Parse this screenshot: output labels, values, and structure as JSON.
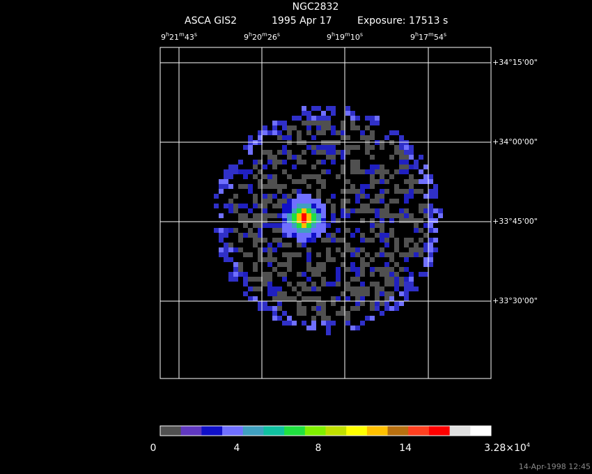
{
  "header": {
    "title": "NGC2832",
    "instrument": "ASCA GIS2",
    "date": "1995 Apr 17",
    "exposure": "Exposure: 17513 s"
  },
  "ra_labels": [
    [
      "9",
      "h",
      "21",
      "m",
      "43",
      "s"
    ],
    [
      "9",
      "h",
      "20",
      "m",
      "26",
      "s"
    ],
    [
      "9",
      "h",
      "19",
      "m",
      "10",
      "s"
    ],
    [
      "9",
      "h",
      "17",
      "m",
      "54",
      "s"
    ]
  ],
  "dec_labels": [
    "+34°15'00\"",
    "+34°00'00\"",
    "+33°45'00\"",
    "+33°30'00\""
  ],
  "colorbar": {
    "colors": [
      "#505050",
      "#6038c0",
      "#1010c8",
      "#7070ff",
      "#40a0c0",
      "#10c0a0",
      "#20e040",
      "#80f000",
      "#c0e000",
      "#ffff00",
      "#ffc000",
      "#b87010",
      "#ff4020",
      "#ff0000",
      "#e0e0e0",
      "#ffffff"
    ],
    "labels": [
      "0",
      "4",
      "8",
      "14",
      [
        "3.28×10",
        "4"
      ]
    ]
  },
  "timestamp": "14-Apr-1998 12:45"
}
